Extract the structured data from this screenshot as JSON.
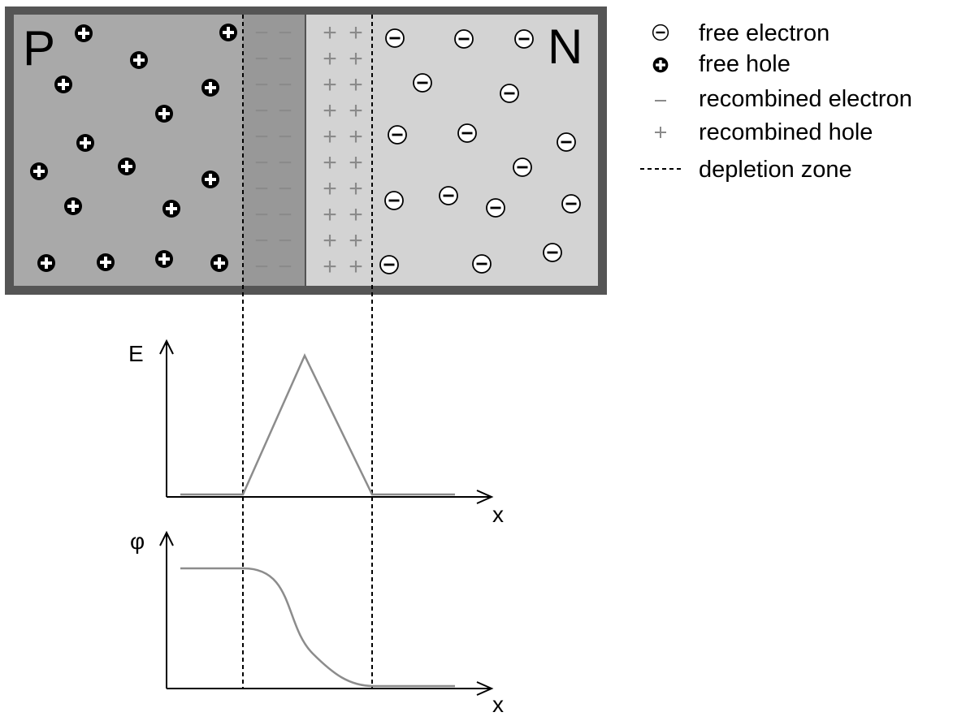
{
  "diagram": {
    "regions": {
      "p_label": "P",
      "n_label": "N"
    },
    "legend": [
      {
        "symbol": "free-electron",
        "label": "free electron"
      },
      {
        "symbol": "free-hole",
        "label": "free hole"
      },
      {
        "symbol": "recombined-electron",
        "label": "recombined electron"
      },
      {
        "symbol": "recombined-hole",
        "label": "recombined hole"
      },
      {
        "symbol": "depletion-line",
        "label": "depletion zone"
      }
    ],
    "fixed_charges": {
      "minus": "−",
      "plus": "+"
    },
    "field_plot": {
      "ylabel": "E",
      "xlabel": "x"
    },
    "potential_plot": {
      "ylabel": "φ",
      "xlabel": "x"
    },
    "colors": {
      "frame": "#555555",
      "p_region": "#a9a9a9",
      "p_depletion": "#989898",
      "n_region": "#d3d3d3",
      "curve": "#8c8c8c",
      "fixed_charge": "#8a8a8a"
    }
  }
}
